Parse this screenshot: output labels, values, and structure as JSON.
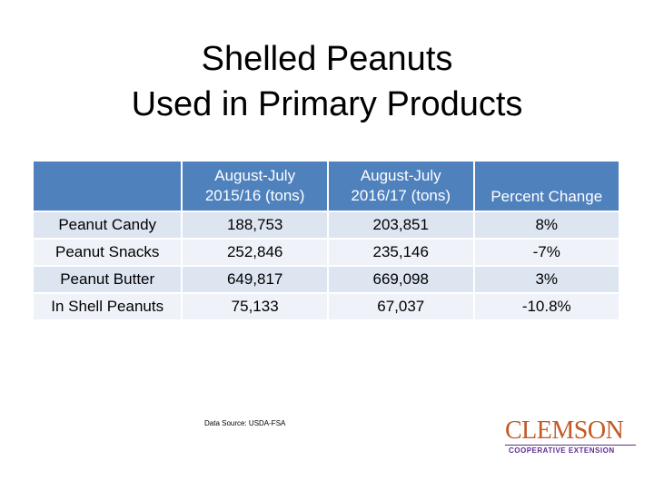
{
  "title": {
    "line1": "Shelled Peanuts",
    "line2": "Used in Primary Products"
  },
  "table": {
    "headers": [
      "",
      "August-July 2015/16 (tons)",
      "August-July 2016/17 (tons)",
      "Percent Change"
    ],
    "rows": [
      [
        "Peanut Candy",
        "188,753",
        "203,851",
        "8%"
      ],
      [
        "Peanut Snacks",
        "252,846",
        "235,146",
        "-7%"
      ],
      [
        "Peanut Butter",
        "649,817",
        "669,098",
        "3%"
      ],
      [
        "In Shell Peanuts",
        "75,133",
        "67,037",
        "-10.8%"
      ]
    ]
  },
  "source": "Data Source: USDA-FSA",
  "logo": {
    "name": "CLEMSON",
    "subtitle": "COOPERATIVE EXTENSION"
  },
  "colors": {
    "header_bg": "#4f81bd",
    "row_dark": "#dde5f1",
    "row_light": "#eff3f9",
    "logo_orange": "#c45a26",
    "logo_purple": "#5c2d91"
  }
}
